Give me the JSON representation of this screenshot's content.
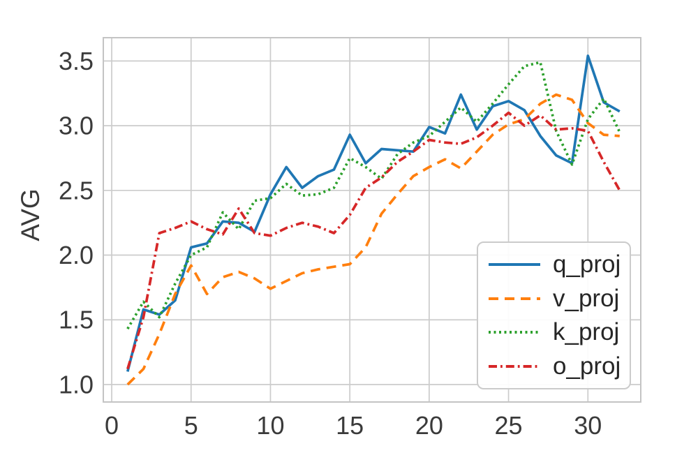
{
  "figure": {
    "background": "#ffffff"
  },
  "chart_data": {
    "type": "line",
    "title": "",
    "xlabel": "",
    "ylabel": "AVG",
    "grid": true,
    "legend_position": "lower right",
    "grid_color": "#cccccc",
    "spine_color": "#c4c4c4",
    "tick_color": "#3a3a3a",
    "text_color": "#262626",
    "line_width": 3.7,
    "xlim": [
      -0.53,
      33.33
    ],
    "ylim": [
      0.865,
      3.68
    ],
    "xticks": {
      "values": [
        0,
        5,
        10,
        15,
        20,
        25,
        30
      ],
      "labels": [
        "0",
        "5",
        "10",
        "15",
        "20",
        "25",
        "30"
      ]
    },
    "yticks": {
      "values": [
        1.0,
        1.5,
        2.0,
        2.5,
        3.0,
        3.5
      ],
      "labels": [
        "1.0",
        "1.5",
        "2.0",
        "2.5",
        "3.0",
        "3.5"
      ]
    },
    "x": [
      1,
      2,
      3,
      4,
      5,
      6,
      7,
      8,
      9,
      10,
      11,
      12,
      13,
      14,
      15,
      16,
      17,
      18,
      19,
      20,
      21,
      22,
      23,
      24,
      25,
      26,
      27,
      28,
      29,
      30,
      31,
      32
    ],
    "series": [
      {
        "name": "q_proj",
        "color": "#1f77b4",
        "dash": "",
        "values": [
          1.1,
          1.58,
          1.54,
          1.65,
          2.06,
          2.09,
          2.26,
          2.25,
          2.18,
          2.47,
          2.68,
          2.52,
          2.61,
          2.66,
          2.93,
          2.71,
          2.82,
          2.81,
          2.8,
          2.99,
          2.94,
          3.24,
          2.97,
          3.15,
          3.19,
          3.12,
          2.92,
          2.77,
          2.71,
          3.54,
          3.18,
          3.11
        ]
      },
      {
        "name": "v_proj",
        "color": "#ff7f0e",
        "dash": "14 9",
        "values": [
          1.0,
          1.12,
          1.39,
          1.7,
          1.92,
          1.7,
          1.83,
          1.87,
          1.82,
          1.74,
          1.8,
          1.86,
          1.89,
          1.91,
          1.93,
          2.06,
          2.32,
          2.47,
          2.61,
          2.68,
          2.74,
          2.67,
          2.8,
          2.93,
          3.01,
          3.05,
          3.17,
          3.24,
          3.2,
          3.02,
          2.93,
          2.92
        ]
      },
      {
        "name": "k_proj",
        "color": "#2ca02c",
        "dash": "3 4.5",
        "values": [
          1.43,
          1.64,
          1.52,
          1.78,
          2.0,
          2.06,
          2.33,
          2.2,
          2.42,
          2.44,
          2.55,
          2.46,
          2.47,
          2.52,
          2.75,
          2.68,
          2.59,
          2.78,
          2.87,
          2.92,
          3.03,
          3.14,
          3.03,
          3.17,
          3.32,
          3.46,
          3.49,
          2.96,
          2.7,
          3.05,
          3.21,
          2.95
        ]
      },
      {
        "name": "o_proj",
        "color": "#d62728",
        "dash": "12 5 2.8 5",
        "values": [
          1.12,
          1.52,
          2.17,
          2.21,
          2.26,
          2.2,
          2.16,
          2.36,
          2.17,
          2.15,
          2.21,
          2.25,
          2.22,
          2.17,
          2.31,
          2.52,
          2.6,
          2.72,
          2.8,
          2.89,
          2.87,
          2.86,
          2.91,
          3.0,
          3.1,
          3.0,
          3.08,
          2.97,
          2.98,
          2.96,
          2.72,
          2.5
        ]
      }
    ]
  }
}
